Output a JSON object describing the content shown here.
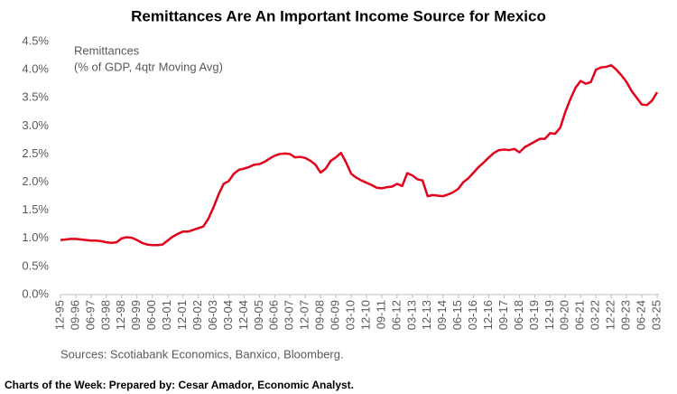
{
  "chart_data": {
    "type": "line",
    "title": "Remittances Are An Important Income Source for Mexico",
    "annotation": "(% of GDP, 4qtr Moving Avg)",
    "source": "Sources: Scotiabank Economics, Banxico, Bloomberg.",
    "footer": "Charts of the Week: Prepared by: Cesar Amador, Economic Analyst.",
    "categories": [
      "12-95",
      null,
      null,
      "09-96",
      null,
      null,
      "06-97",
      null,
      null,
      "03-98",
      null,
      null,
      "12-98",
      null,
      null,
      "09-99",
      null,
      null,
      "06-00",
      null,
      null,
      "03-01",
      null,
      null,
      "12-01",
      null,
      null,
      "09-02",
      null,
      null,
      "06-03",
      null,
      null,
      "03-04",
      null,
      null,
      "12-04",
      null,
      null,
      "09-05",
      null,
      null,
      "06-06",
      null,
      null,
      "03-07",
      null,
      null,
      "12-07",
      null,
      null,
      "09-08",
      null,
      null,
      "06-09",
      null,
      null,
      "03-10",
      null,
      null,
      "12-10",
      null,
      null,
      "09-11",
      null,
      null,
      "06-12",
      null,
      null,
      "03-13",
      null,
      null,
      "12-13",
      null,
      null,
      "09-14",
      null,
      null,
      "06-15",
      null,
      null,
      "03-16",
      null,
      null,
      "12-16",
      null,
      null,
      "09-17",
      null,
      null,
      "06-18",
      null,
      null,
      "03-19",
      null,
      null,
      "12-19",
      null,
      null,
      "09-20",
      null,
      null,
      "06-21",
      null,
      null,
      "03-22",
      null,
      null,
      "12-22",
      null,
      null,
      "09-23",
      null,
      null,
      "06-24",
      null,
      null,
      "03-25"
    ],
    "series": [
      {
        "name": "Remittances",
        "color": "#e3001b",
        "values": [
          0.97,
          0.98,
          0.99,
          0.99,
          0.98,
          0.97,
          0.96,
          0.96,
          0.95,
          0.93,
          0.92,
          0.93,
          1.0,
          1.02,
          1.01,
          0.97,
          0.92,
          0.89,
          0.88,
          0.88,
          0.89,
          0.96,
          1.03,
          1.08,
          1.12,
          1.12,
          1.15,
          1.18,
          1.21,
          1.35,
          1.55,
          1.78,
          1.97,
          2.02,
          2.15,
          2.22,
          2.24,
          2.27,
          2.31,
          2.32,
          2.36,
          2.42,
          2.47,
          2.5,
          2.51,
          2.5,
          2.44,
          2.45,
          2.43,
          2.38,
          2.31,
          2.17,
          2.24,
          2.38,
          2.44,
          2.52,
          2.35,
          2.15,
          2.08,
          2.03,
          1.99,
          1.95,
          1.9,
          1.89,
          1.91,
          1.92,
          1.97,
          1.93,
          2.16,
          2.12,
          2.05,
          2.03,
          1.75,
          1.77,
          1.76,
          1.75,
          1.78,
          1.82,
          1.88,
          2.0,
          2.07,
          2.17,
          2.27,
          2.35,
          2.44,
          2.52,
          2.57,
          2.58,
          2.57,
          2.59,
          2.53,
          2.62,
          2.67,
          2.72,
          2.77,
          2.77,
          2.87,
          2.86,
          2.97,
          3.25,
          3.48,
          3.68,
          3.8,
          3.75,
          3.78,
          4.0,
          4.04,
          4.05,
          4.08,
          4.0,
          3.9,
          3.78,
          3.62,
          3.5,
          3.38,
          3.37,
          3.45,
          3.6
        ]
      }
    ],
    "ylim": [
      0,
      4.5
    ],
    "yticks": [
      {
        "value": 0,
        "label": "0.0%"
      },
      {
        "value": 0.5,
        "label": "0.5%"
      },
      {
        "value": 1,
        "label": "1.0%"
      },
      {
        "value": 1.5,
        "label": "1.5%"
      },
      {
        "value": 2,
        "label": "2.0%"
      },
      {
        "value": 2.5,
        "label": "2.5%"
      },
      {
        "value": 3,
        "label": "3.0%"
      },
      {
        "value": 3.5,
        "label": "3.5%"
      },
      {
        "value": 4,
        "label": "4.0%"
      },
      {
        "value": 4.5,
        "label": "4.5%"
      }
    ],
    "grid": false
  }
}
